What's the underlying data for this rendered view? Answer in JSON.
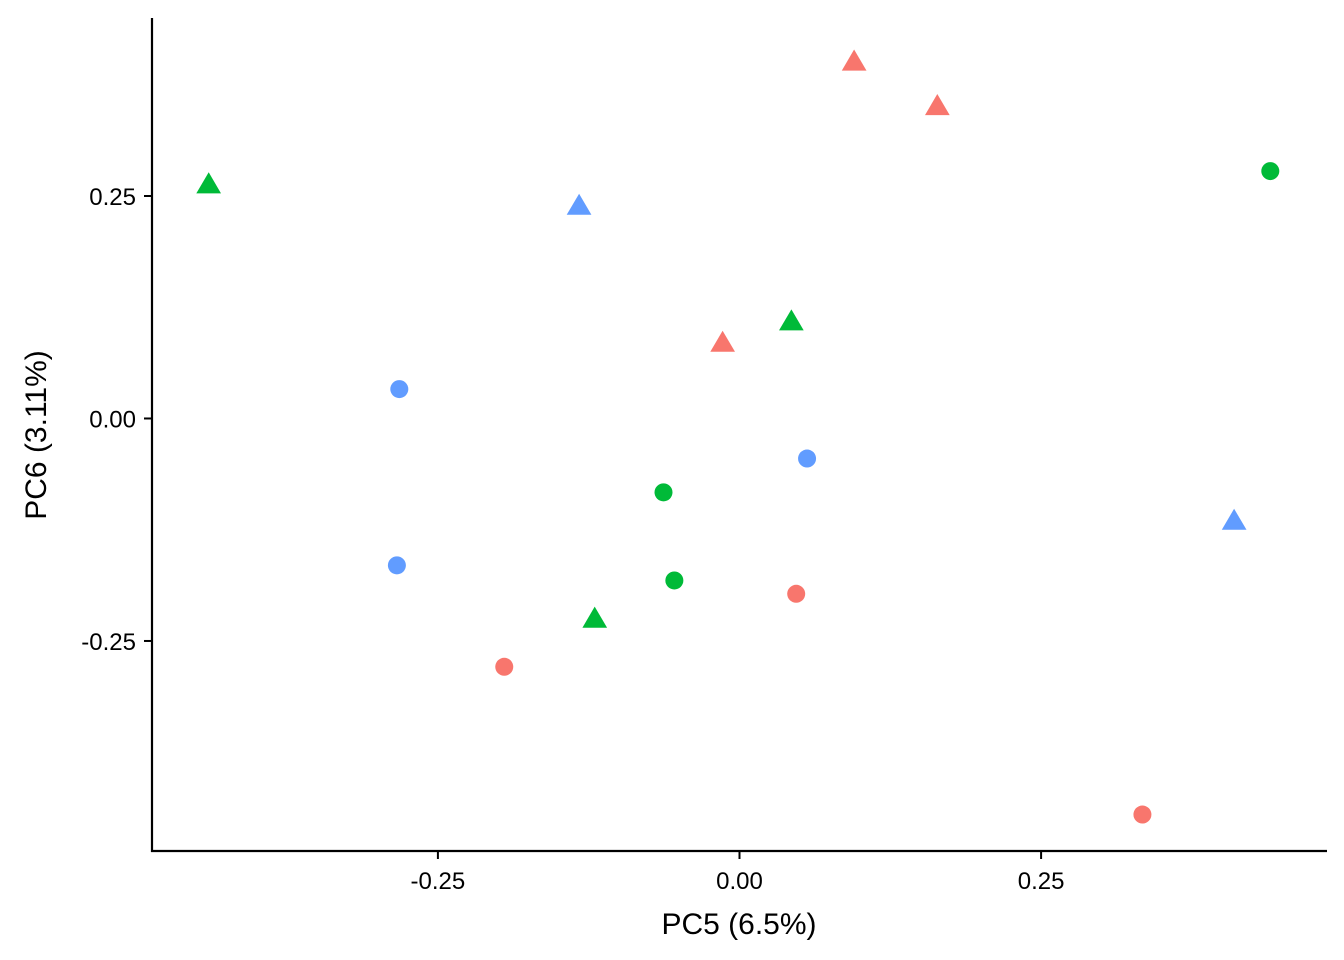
{
  "chart_data": {
    "type": "scatter",
    "title": "",
    "xlabel": "PC5 (6.5%)",
    "ylabel": "PC6 (3.11%)",
    "xlim": [
      -0.487,
      0.487
    ],
    "ylim": [
      -0.486,
      0.45
    ],
    "x_ticks": [
      {
        "value": -0.25,
        "label": "-0.25"
      },
      {
        "value": 0.0,
        "label": "0.00"
      },
      {
        "value": 0.25,
        "label": "0.25"
      }
    ],
    "y_ticks": [
      {
        "value": 0.25,
        "label": "0.25"
      },
      {
        "value": 0.0,
        "label": "0.00"
      },
      {
        "value": -0.25,
        "label": "-0.25"
      }
    ],
    "grid": false,
    "legend": "none",
    "colors": {
      "red": "#F8766D",
      "green": "#00BA38",
      "blue": "#619CFF"
    },
    "points": [
      {
        "x": -0.44,
        "y": 0.262,
        "shape": "triangle",
        "color": "green"
      },
      {
        "x": -0.133,
        "y": 0.238,
        "shape": "triangle",
        "color": "blue"
      },
      {
        "x": 0.095,
        "y": 0.4,
        "shape": "triangle",
        "color": "red"
      },
      {
        "x": 0.164,
        "y": 0.35,
        "shape": "triangle",
        "color": "red"
      },
      {
        "x": 0.44,
        "y": 0.278,
        "shape": "circle",
        "color": "green"
      },
      {
        "x": 0.043,
        "y": 0.108,
        "shape": "triangle",
        "color": "green"
      },
      {
        "x": -0.014,
        "y": 0.084,
        "shape": "triangle",
        "color": "red"
      },
      {
        "x": -0.282,
        "y": 0.033,
        "shape": "circle",
        "color": "blue"
      },
      {
        "x": 0.056,
        "y": -0.045,
        "shape": "circle",
        "color": "blue"
      },
      {
        "x": -0.063,
        "y": -0.083,
        "shape": "circle",
        "color": "green"
      },
      {
        "x": 0.41,
        "y": -0.116,
        "shape": "triangle",
        "color": "blue"
      },
      {
        "x": -0.284,
        "y": -0.165,
        "shape": "circle",
        "color": "blue"
      },
      {
        "x": -0.054,
        "y": -0.182,
        "shape": "circle",
        "color": "green"
      },
      {
        "x": 0.047,
        "y": -0.197,
        "shape": "circle",
        "color": "red"
      },
      {
        "x": -0.12,
        "y": -0.226,
        "shape": "triangle",
        "color": "green"
      },
      {
        "x": -0.195,
        "y": -0.279,
        "shape": "circle",
        "color": "red"
      },
      {
        "x": 0.334,
        "y": -0.445,
        "shape": "circle",
        "color": "red"
      }
    ]
  }
}
